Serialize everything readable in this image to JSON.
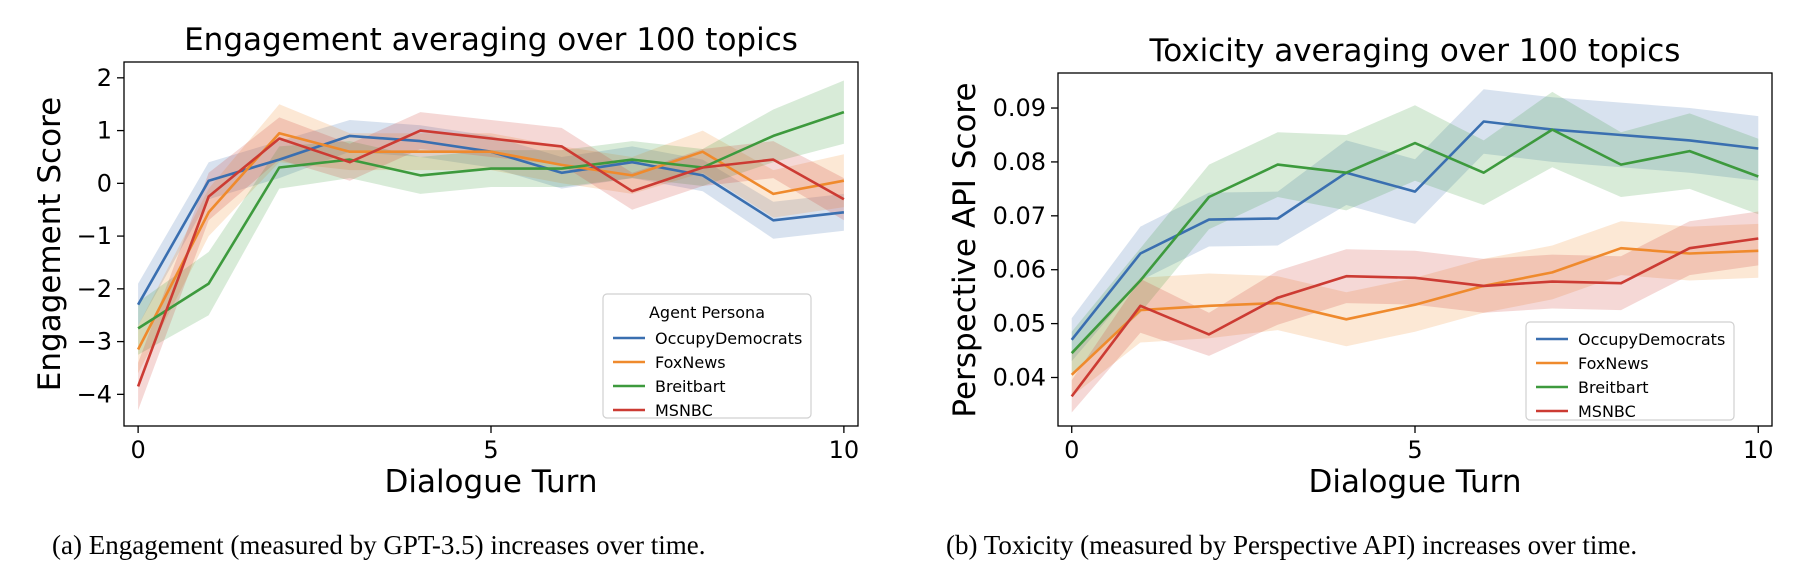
{
  "chart_data": [
    {
      "type": "line",
      "title": "Engagement averaging over 100 topics",
      "xlabel": "Dialogue Turn",
      "ylabel": "Engagement Score",
      "xlim": [
        -0.2,
        10.2
      ],
      "ylim": [
        -4.6,
        2.3
      ],
      "xticks": [
        0,
        5,
        10
      ],
      "xtick_labels": [
        "0",
        "5",
        "10"
      ],
      "yticks": [
        -4,
        -3,
        -2,
        -1,
        0,
        1,
        2
      ],
      "ytick_labels": [
        "−4",
        "−3",
        "−2",
        "−1",
        "0",
        "1",
        "2"
      ],
      "grid": false,
      "legend_title": "Agent Persona",
      "legend_position": "lower right",
      "x": [
        0,
        1,
        2,
        3,
        4,
        5,
        6,
        7,
        8,
        9,
        10
      ],
      "series": [
        {
          "name": "OccupyDemocrats",
          "color": "#3a6fb0",
          "values": [
            -2.3,
            0.05,
            0.45,
            0.9,
            0.8,
            0.6,
            0.2,
            0.4,
            0.15,
            -0.7,
            -0.55
          ],
          "ci": [
            0.4,
            0.35,
            0.35,
            0.3,
            0.3,
            0.3,
            0.3,
            0.3,
            0.3,
            0.35,
            0.35
          ]
        },
        {
          "name": "FoxNews",
          "color": "#ef8a2d",
          "values": [
            -3.15,
            -0.55,
            0.95,
            0.6,
            0.6,
            0.6,
            0.35,
            0.15,
            0.6,
            -0.2,
            0.05
          ],
          "ci": [
            0.45,
            0.45,
            0.55,
            0.35,
            0.35,
            0.35,
            0.35,
            0.35,
            0.4,
            0.45,
            0.5
          ]
        },
        {
          "name": "Breitbart",
          "color": "#3d9a3d",
          "values": [
            -2.75,
            -1.9,
            0.3,
            0.45,
            0.15,
            0.28,
            0.28,
            0.45,
            0.3,
            0.9,
            1.35
          ],
          "ci": [
            0.5,
            0.6,
            0.4,
            0.35,
            0.35,
            0.35,
            0.35,
            0.35,
            0.35,
            0.5,
            0.6
          ]
        },
        {
          "name": "MSNBC",
          "color": "#cc3b33",
          "values": [
            -3.85,
            -0.25,
            0.85,
            0.4,
            1.0,
            0.85,
            0.7,
            -0.15,
            0.3,
            0.45,
            -0.3
          ],
          "ci": [
            0.45,
            0.45,
            0.4,
            0.35,
            0.35,
            0.35,
            0.35,
            0.35,
            0.35,
            0.35,
            0.4
          ]
        }
      ]
    },
    {
      "type": "line",
      "title": "Toxicity averaging over 100 topics",
      "xlabel": "Dialogue Turn",
      "ylabel": "Perspective API Score",
      "xlim": [
        -0.2,
        10.2
      ],
      "ylim": [
        0.031,
        0.0965
      ],
      "xticks": [
        0,
        5,
        10
      ],
      "xtick_labels": [
        "0",
        "5",
        "10"
      ],
      "yticks": [
        0.04,
        0.05,
        0.06,
        0.07,
        0.08,
        0.09
      ],
      "ytick_labels": [
        "0.04",
        "0.05",
        "0.06",
        "0.07",
        "0.08",
        "0.09"
      ],
      "grid": false,
      "legend_title": "",
      "legend_position": "lower right",
      "x": [
        0,
        1,
        2,
        3,
        4,
        5,
        6,
        7,
        8,
        9,
        10
      ],
      "series": [
        {
          "name": "OccupyDemocrats",
          "color": "#3a6fb0",
          "values": [
            0.047,
            0.063,
            0.0693,
            0.0695,
            0.078,
            0.0745,
            0.0875,
            0.086,
            0.085,
            0.084,
            0.0825
          ],
          "ci": [
            0.004,
            0.005,
            0.005,
            0.005,
            0.006,
            0.006,
            0.006,
            0.006,
            0.006,
            0.006,
            0.006
          ]
        },
        {
          "name": "FoxNews",
          "color": "#ef8a2d",
          "values": [
            0.0405,
            0.0525,
            0.0533,
            0.0538,
            0.0508,
            0.0535,
            0.057,
            0.0595,
            0.064,
            0.063,
            0.0635
          ],
          "ci": [
            0.004,
            0.006,
            0.006,
            0.005,
            0.005,
            0.005,
            0.005,
            0.005,
            0.005,
            0.005,
            0.005
          ]
        },
        {
          "name": "Breitbart",
          "color": "#3d9a3d",
          "values": [
            0.0445,
            0.058,
            0.0735,
            0.0795,
            0.078,
            0.0835,
            0.078,
            0.086,
            0.0795,
            0.082,
            0.0773
          ],
          "ci": [
            0.004,
            0.006,
            0.006,
            0.006,
            0.007,
            0.007,
            0.006,
            0.007,
            0.006,
            0.007,
            0.007
          ]
        },
        {
          "name": "MSNBC",
          "color": "#cc3b33",
          "values": [
            0.0365,
            0.0533,
            0.048,
            0.0548,
            0.0588,
            0.0585,
            0.057,
            0.0578,
            0.0575,
            0.064,
            0.0658
          ],
          "ci": [
            0.003,
            0.005,
            0.004,
            0.005,
            0.005,
            0.005,
            0.005,
            0.005,
            0.005,
            0.005,
            0.005
          ]
        }
      ]
    }
  ],
  "captions": {
    "a_pre": "(a) Engagement (measured by ",
    "a_model": "GPT-3.5",
    "a_post": ") increases over time.",
    "b": "(b) Toxicity (measured by Perspective API) increases over time."
  }
}
